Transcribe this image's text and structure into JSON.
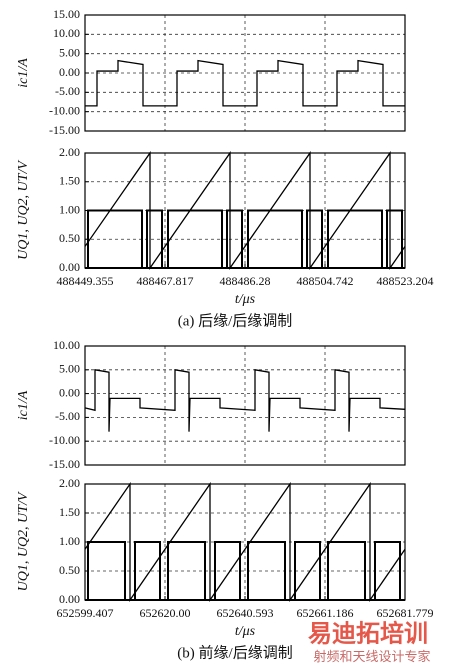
{
  "chart_data": [
    {
      "type": "line",
      "ylabel": "ic1/A",
      "xlim": [
        488449.355,
        488523.204
      ],
      "ylim": [
        -15,
        15
      ],
      "yticks": [
        {
          "value": 15,
          "label": "15.00"
        },
        {
          "value": 10,
          "label": "10.00"
        },
        {
          "value": 5,
          "label": "5.00"
        },
        {
          "value": 0,
          "label": "0.00"
        },
        {
          "value": -5,
          "label": "-5.00"
        },
        {
          "value": -10,
          "label": "-10.00"
        },
        {
          "value": -15,
          "label": "-15.00"
        }
      ],
      "grid": true,
      "series": [
        {
          "color": "#000000",
          "x": [
            488449.355,
            488452.124,
            488452.124,
            488456.971,
            488456.971,
            488462.74,
            488462.74,
            488470.586,
            488470.586,
            488475.433,
            488475.433,
            488481.202,
            488481.202,
            488489.048,
            488489.048,
            488493.895,
            488493.895,
            488499.664,
            488499.664,
            488507.51,
            488507.51,
            488512.357,
            488512.357,
            488518.126,
            488518.126,
            488523.204
          ],
          "values": [
            -8.5,
            -8.5,
            0.5,
            0.5,
            3.2,
            2.2,
            -8.5,
            -8.5,
            0.5,
            0.5,
            3.2,
            2.2,
            -8.5,
            -8.5,
            0.5,
            0.5,
            3.2,
            2.2,
            -8.5,
            -8.5,
            0.5,
            0.5,
            3.2,
            2.2,
            -8.5,
            -8.5
          ]
        }
      ]
    },
    {
      "type": "line",
      "ylabel": "UQ1, UQ2, UT/V",
      "xlabel": "t/μs",
      "caption": "(a) 后缘/后缘调制",
      "xlim": [
        488449.355,
        488523.204
      ],
      "ylim": [
        0,
        2
      ],
      "xticks": [
        488449.355,
        488467.817,
        488486.28,
        488504.742,
        488523.204
      ],
      "yticks": [
        {
          "value": 2,
          "label": "2.00"
        },
        {
          "value": 1.5,
          "label": "1.50"
        },
        {
          "value": 1,
          "label": "1.00"
        },
        {
          "value": 0.5,
          "label": "0.50"
        },
        {
          "value": 0,
          "label": "0.00"
        }
      ],
      "grid": true,
      "series": [
        {
          "color": "#000000",
          "x": [
            488449.355,
            488464.356,
            488464.356,
            488482.818,
            488482.818,
            488501.28,
            488501.28,
            488519.742,
            488519.742,
            488523.204
          ],
          "values": [
            0.375,
            2,
            0,
            2,
            0,
            2,
            0,
            2,
            0,
            0.375
          ]
        },
        {
          "color": "#000000",
          "x": [
            488449.355,
            488450.047,
            488450.047,
            488462.509,
            488462.509,
            488468.509,
            488468.509,
            488480.971,
            488480.971,
            488486.971,
            488486.971,
            488499.433,
            488499.433,
            488505.433,
            488505.433,
            488517.895,
            488517.895,
            488523.204
          ],
          "values": [
            0,
            0,
            1,
            1,
            0,
            0,
            1,
            1,
            0,
            0,
            1,
            1,
            0,
            0,
            1,
            1,
            0,
            0
          ]
        },
        {
          "color": "#000000",
          "x": [
            488449.355,
            488463.663,
            488463.663,
            488467.125,
            488467.125,
            488482.125,
            488482.125,
            488485.587,
            488485.587,
            488500.587,
            488500.587,
            488504.049,
            488504.049,
            488519.049,
            488519.049,
            488522.511,
            488522.511,
            488523.204
          ],
          "values": [
            0,
            0,
            1,
            1,
            0,
            0,
            1,
            1,
            0,
            0,
            1,
            1,
            0,
            0,
            1,
            1,
            0,
            0
          ]
        }
      ]
    },
    {
      "type": "line",
      "ylabel": "ic1/A",
      "xlim": [
        652599.407,
        652681.779
      ],
      "ylim": [
        -15,
        10
      ],
      "yticks": [
        {
          "value": 10,
          "label": "10.00"
        },
        {
          "value": 5,
          "label": "5.00"
        },
        {
          "value": 0,
          "label": "0.00"
        },
        {
          "value": -5,
          "label": "-5.00"
        },
        {
          "value": -10,
          "label": "-10.00"
        },
        {
          "value": -15,
          "label": "-15.00"
        }
      ],
      "grid": true,
      "series": [
        {
          "color": "#000000",
          "x": [
            652599.407,
            652601.981,
            652601.981,
            652605.585,
            652605.585,
            652605.842,
            652613.565,
            652613.565,
            652622.574,
            652622.574,
            652626.178,
            652626.178,
            652626.435,
            652634.158,
            652634.158,
            652643.167,
            652643.167,
            652646.771,
            652646.771,
            652647.028,
            652654.751,
            652654.751,
            652663.76,
            652663.76,
            652667.364,
            652667.364,
            652667.621,
            652675.344,
            652675.344,
            652681.779
          ],
          "values": [
            -3,
            -3.5,
            5,
            4.5,
            -8,
            -1,
            -1,
            -3,
            -3.5,
            5,
            4.5,
            -8,
            -1,
            -1,
            -3,
            -3.5,
            5,
            4.5,
            -8,
            -1,
            -1,
            -3,
            -3.5,
            5,
            4.5,
            -8,
            -1,
            -1,
            -3,
            -3.3
          ]
        }
      ]
    },
    {
      "type": "line",
      "ylabel": "UQ1, UQ2, UT/V",
      "xlabel": "t/μs",
      "caption": "(b) 前缘/后缘调制",
      "xlim": [
        652599.407,
        652681.779
      ],
      "ylim": [
        0,
        2
      ],
      "xticks": [
        652599.407,
        {
          "value": 652620,
          "label": "652620.00"
        },
        652640.593,
        652661.186,
        652681.779
      ],
      "yticks": [
        {
          "value": 2,
          "label": "2.00"
        },
        {
          "value": 1.5,
          "label": "1.50"
        },
        {
          "value": 1,
          "label": "1.00"
        },
        {
          "value": 0.5,
          "label": "0.50"
        },
        {
          "value": 0,
          "label": "0.00"
        }
      ],
      "grid": true,
      "series": [
        {
          "color": "#000000",
          "x": [
            652599.407,
            652610.99,
            652610.99,
            652631.583,
            652631.583,
            652652.176,
            652652.176,
            652672.769,
            652672.769,
            652681.779
          ],
          "values": [
            0.875,
            2,
            0,
            2,
            0,
            2,
            0,
            2,
            0,
            0.875
          ]
        },
        {
          "color": "#000000",
          "x": [
            652599.407,
            652600.179,
            652600.179,
            652609.704,
            652609.704,
            652620.772,
            652620.772,
            652630.297,
            652630.297,
            652641.365,
            652641.365,
            652650.89,
            652650.89,
            652661.958,
            652661.958,
            652671.483,
            652671.483,
            652681.779
          ],
          "values": [
            0,
            0,
            1,
            1,
            0,
            0,
            1,
            1,
            0,
            0,
            1,
            1,
            0,
            0,
            1,
            1,
            0,
            0
          ]
        },
        {
          "color": "#000000",
          "x": [
            652599.407,
            652612.278,
            652612.278,
            652618.713,
            652618.713,
            652632.871,
            652632.871,
            652639.306,
            652639.306,
            652653.464,
            652653.464,
            652659.899,
            652659.899,
            652674.057,
            652674.057,
            652680.492,
            652680.492,
            652681.779
          ],
          "values": [
            0,
            0,
            1,
            1,
            0,
            0,
            1,
            1,
            0,
            0,
            1,
            1,
            0,
            0,
            1,
            1,
            0,
            0
          ]
        }
      ]
    }
  ],
  "watermark": {
    "brand": "易迪拓培训",
    "slogan": "射频和天线设计专家"
  }
}
